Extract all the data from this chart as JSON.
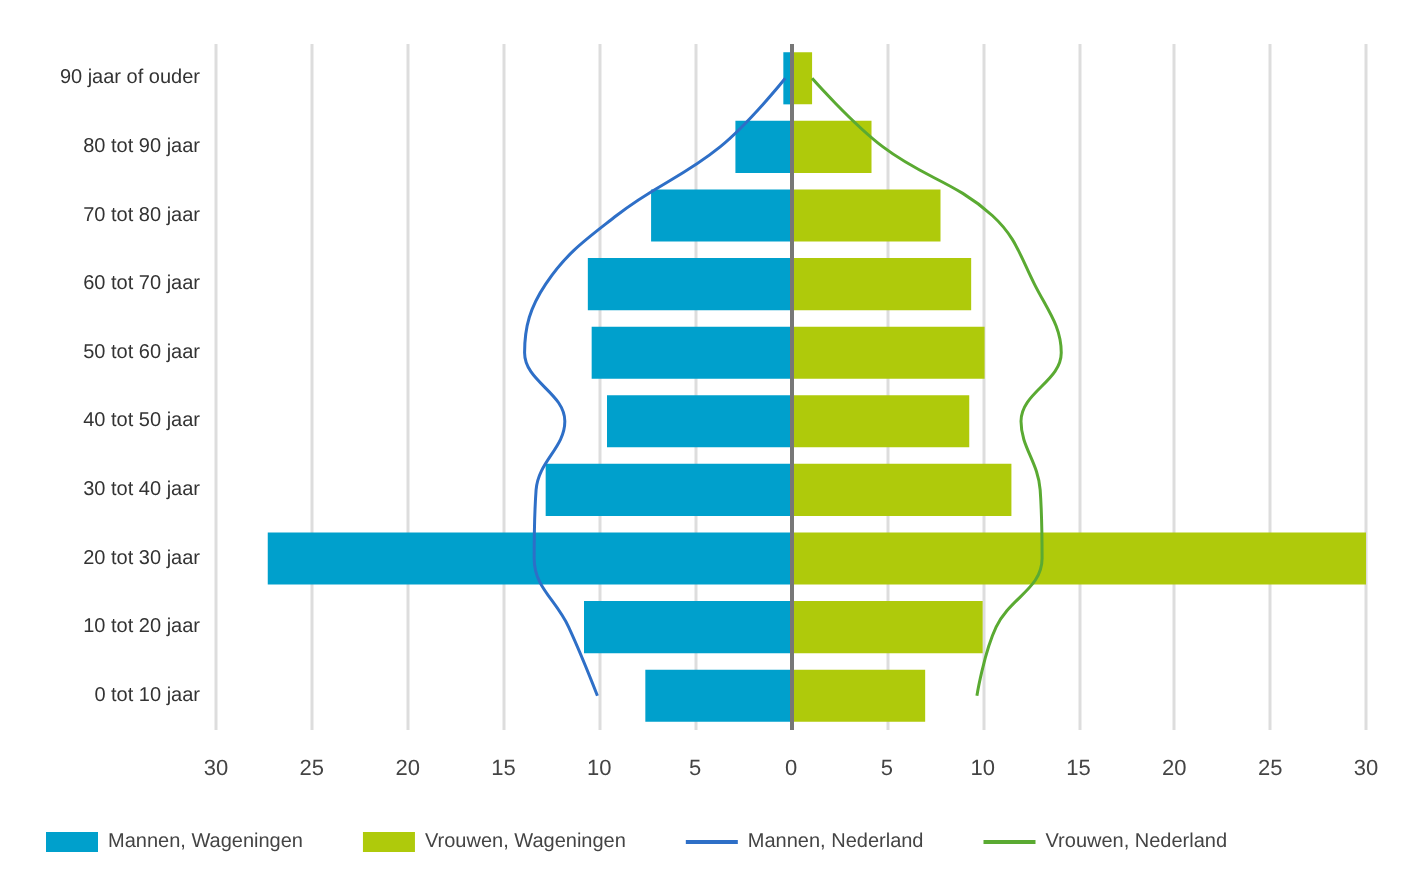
{
  "chart_data": {
    "type": "bar",
    "orientation": "horizontal",
    "stacked": true,
    "categories": [
      "90 jaar of ouder",
      "80 tot 90 jaar",
      "70 tot 80 jaar",
      "60 tot 70 jaar",
      "50 tot 60 jaar",
      "40 tot 50 jaar",
      "30 tot 40 jaar",
      "20 tot 30 jaar",
      "10 tot 20 jaar",
      "0 tot 10 jaar"
    ],
    "series": [
      {
        "name": "Mannen, Wageningen",
        "color": "#00a0cc",
        "values": [
          -0.4,
          -2.9,
          -7.3,
          -10.6,
          -10.4,
          -9.6,
          -12.8,
          -27.3,
          -10.8,
          -7.6
        ]
      },
      {
        "name": "Vrouwen, Wageningen",
        "color": "#afca0b",
        "values": [
          1.1,
          4.2,
          7.8,
          9.4,
          10.1,
          9.3,
          11.5,
          30,
          10.0,
          7.0
        ]
      },
      {
        "name": "Mannen, Nederland",
        "type": "line",
        "color": "#2e6fc7",
        "values": [
          -0.3,
          -3.7,
          -9.1,
          -12.8,
          -13.9,
          -11.8,
          -13.3,
          -13.4,
          -11.6,
          -10.1
        ]
      },
      {
        "name": "Vrouwen, Nederland",
        "type": "line",
        "color": "#5aaa32",
        "values": [
          1.1,
          4.8,
          10.5,
          12.7,
          14.1,
          12.0,
          13.0,
          13.1,
          10.7,
          9.7
        ]
      }
    ],
    "xlim": [
      -30,
      30
    ],
    "xticks": [
      {
        "value": -30,
        "label": "30"
      },
      {
        "value": -25,
        "label": "25"
      },
      {
        "value": -20,
        "label": "20"
      },
      {
        "value": -15,
        "label": "15"
      },
      {
        "value": -10,
        "label": "10"
      },
      {
        "value": -5,
        "label": "5"
      },
      0,
      5,
      10,
      15,
      20,
      25,
      30
    ],
    "grid": "x",
    "legend": "bottom",
    "marker": "none",
    "line_style": "solid"
  }
}
